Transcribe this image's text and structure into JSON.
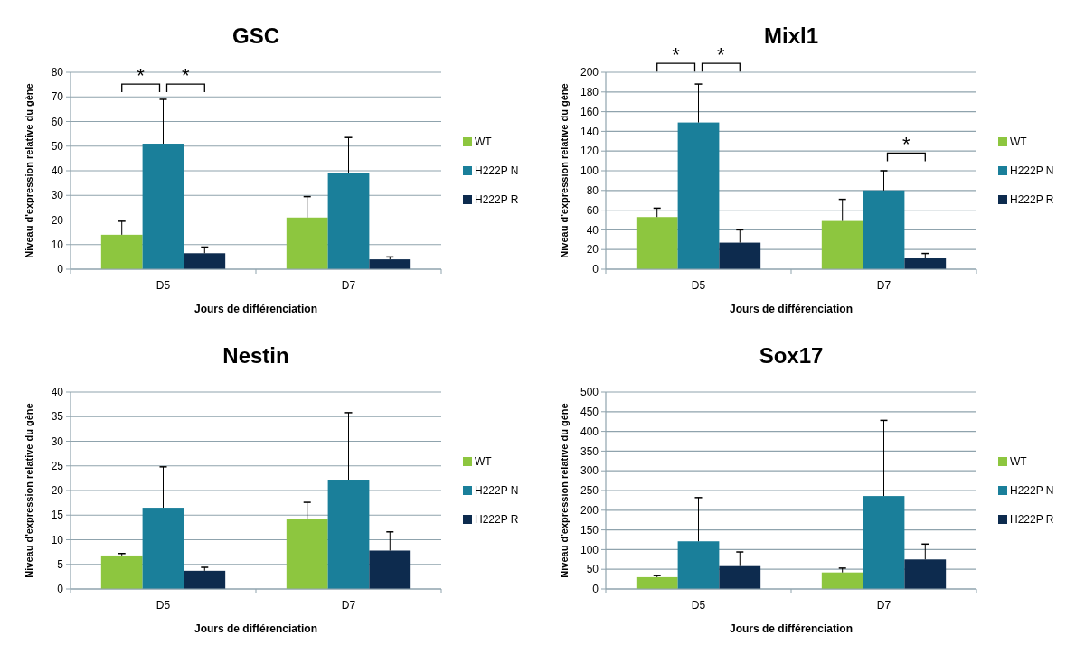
{
  "chart_data": [
    {
      "type": "bar",
      "title": "GSC",
      "xlabel": "Jours de différenciation",
      "ylabel": "Niveau d'expression relative du gène",
      "categories": [
        "D5",
        "D7"
      ],
      "ylim": [
        0,
        80
      ],
      "yticks": [
        0,
        10,
        20,
        30,
        40,
        50,
        60,
        70,
        80
      ],
      "grid": "y",
      "legend": "right",
      "series": [
        {
          "name": "WT",
          "color": "#8dc63f",
          "values": [
            14,
            21
          ],
          "errors": [
            [
              14,
              19.5
            ],
            [
              21,
              29.5
            ]
          ]
        },
        {
          "name": "H222P N",
          "color": "#1a7f9a",
          "values": [
            51,
            39
          ],
          "errors": [
            [
              51,
              69
            ],
            [
              39,
              53.5
            ]
          ]
        },
        {
          "name": "H222P R",
          "color": "#0d2b4e",
          "values": [
            6.5,
            4
          ],
          "errors": [
            [
              6.5,
              9
            ],
            [
              4,
              5
            ]
          ]
        }
      ],
      "annotations": [
        "*",
        "*"
      ]
    },
    {
      "type": "bar",
      "title": "Mixl1",
      "xlabel": "Jours de différenciation",
      "ylabel": "Niveau d'expression relative du gène",
      "categories": [
        "D5",
        "D7"
      ],
      "ylim": [
        0,
        200
      ],
      "yticks": [
        0,
        20,
        40,
        60,
        80,
        100,
        120,
        140,
        160,
        180,
        200
      ],
      "grid": "y",
      "legend": "right",
      "series": [
        {
          "name": "WT",
          "color": "#8dc63f",
          "values": [
            53,
            49
          ],
          "errors": [
            [
              53,
              62
            ],
            [
              49,
              71
            ]
          ]
        },
        {
          "name": "H222P N",
          "color": "#1a7f9a",
          "values": [
            149,
            80
          ],
          "errors": [
            [
              149,
              188
            ],
            [
              80,
              100
            ]
          ]
        },
        {
          "name": "H222P R",
          "color": "#0d2b4e",
          "values": [
            27,
            11
          ],
          "errors": [
            [
              27,
              40
            ],
            [
              11,
              16
            ]
          ]
        }
      ],
      "annotations": [
        "*",
        "*",
        "*"
      ]
    },
    {
      "type": "bar",
      "title": "Nestin",
      "xlabel": "Jours de différenciation",
      "ylabel": "Niveau d'expression relative du gène",
      "categories": [
        "D5",
        "D7"
      ],
      "ylim": [
        0,
        40
      ],
      "yticks": [
        0,
        5,
        10,
        15,
        20,
        25,
        30,
        35,
        40
      ],
      "grid": "y",
      "legend": "right",
      "series": [
        {
          "name": "WT",
          "color": "#8dc63f",
          "values": [
            6.8,
            14.3
          ],
          "errors": [
            [
              6.8,
              7.2
            ],
            [
              14.3,
              17.6
            ]
          ]
        },
        {
          "name": "H222P N",
          "color": "#1a7f9a",
          "values": [
            16.5,
            22.2
          ],
          "errors": [
            [
              16.5,
              24.8
            ],
            [
              22.2,
              35.8
            ]
          ]
        },
        {
          "name": "H222P R",
          "color": "#0d2b4e",
          "values": [
            3.7,
            7.8
          ],
          "errors": [
            [
              3.7,
              4.4
            ],
            [
              7.8,
              11.6
            ]
          ]
        }
      ]
    },
    {
      "type": "bar",
      "title": "Sox17",
      "xlabel": "Jours de différenciation",
      "ylabel": "Niveau d'expression relative du gène",
      "categories": [
        "D5",
        "D7"
      ],
      "ylim": [
        0,
        500
      ],
      "yticks": [
        0,
        50,
        100,
        150,
        200,
        250,
        300,
        350,
        400,
        450,
        500
      ],
      "grid": "y",
      "legend": "right",
      "series": [
        {
          "name": "WT",
          "color": "#8dc63f",
          "values": [
            30,
            42
          ],
          "errors": [
            [
              30,
              34
            ],
            [
              42,
              53
            ]
          ]
        },
        {
          "name": "H222P N",
          "color": "#1a7f9a",
          "values": [
            121,
            236
          ],
          "errors": [
            [
              121,
              232
            ],
            [
              236,
              428
            ]
          ]
        },
        {
          "name": "H222P R",
          "color": "#0d2b4e",
          "values": [
            58,
            75
          ],
          "errors": [
            [
              58,
              94
            ],
            [
              75,
              114
            ]
          ]
        }
      ]
    }
  ]
}
